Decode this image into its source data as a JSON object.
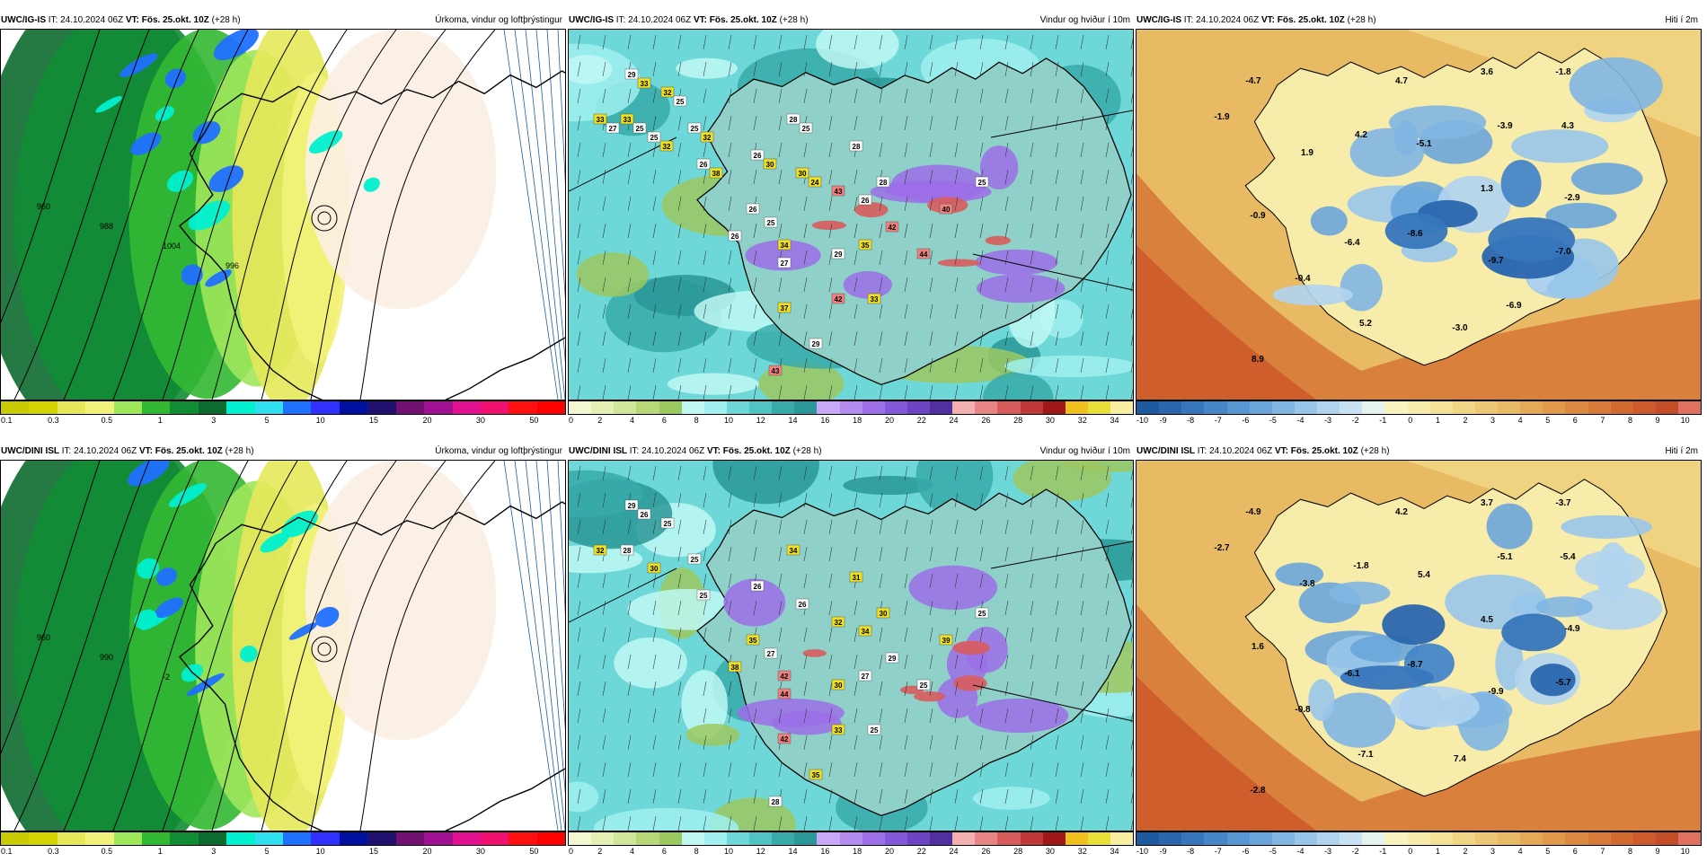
{
  "rows": [
    {
      "model": "UWC/IG-IS",
      "it_label": "IT:",
      "it_value": "24.10.2024 06Z",
      "vt_label": "VT:",
      "vt_value": "Fös. 25.okt. 10Z",
      "lead": "(+28 h)"
    },
    {
      "model": "UWC/DINI ISL",
      "it_label": "IT:",
      "it_value": "24.10.2024 06Z",
      "vt_label": "VT:",
      "vt_value": "Fös. 25.okt. 10Z",
      "lead": "(+28 h)"
    }
  ],
  "products": {
    "precip": {
      "title": "Úrkoma, vindur og loftþrýstingur",
      "colors": [
        "#c8cc00",
        "#d4d400",
        "#e6e85a",
        "#f2f27a",
        "#9ee65a",
        "#33b833",
        "#128c34",
        "#0c6b2e",
        "#00f0d0",
        "#30e0f0",
        "#2070ff",
        "#3030ff",
        "#0010a0",
        "#201070",
        "#701070",
        "#a01090",
        "#e01090",
        "#f01070",
        "#ff1010",
        "#ff0000"
      ],
      "ticks": [
        "0.1",
        "0.3",
        "0.5",
        "1",
        "3",
        "5",
        "10",
        "15",
        "20",
        "30",
        "50"
      ]
    },
    "wind": {
      "title": "Vindur og hviður í 10m",
      "colors": [
        "#f4f8d0",
        "#e4f0b4",
        "#d0e69a",
        "#b8d878",
        "#9cc860",
        "#c0f8f4",
        "#a0f0f0",
        "#6ed8d8",
        "#50c4c4",
        "#38aaaa",
        "#2a9898",
        "#c8a8f8",
        "#b48cf0",
        "#9c6ee8",
        "#8458d8",
        "#6c44c4",
        "#5030a0",
        "#f4b0b0",
        "#e88484",
        "#d85c5c",
        "#c03838",
        "#a01818",
        "#f0c020",
        "#e8e038",
        "#f8f0a0"
      ],
      "ticks": [
        "0",
        "2",
        "4",
        "6",
        "8",
        "10",
        "12",
        "14",
        "16",
        "18",
        "20",
        "22",
        "24",
        "26",
        "28",
        "30",
        "32",
        "34"
      ]
    },
    "temp": {
      "title": "Hiti í 2m",
      "colors": [
        "#1e5aa0",
        "#2a66ae",
        "#3676bc",
        "#4486c8",
        "#5696d2",
        "#6aa6da",
        "#80b6e2",
        "#98c6ea",
        "#b0d4f0",
        "#c8e2f4",
        "#e4f2f0",
        "#f8f4c0",
        "#f8ecaa",
        "#f4e296",
        "#f0d684",
        "#ecc874",
        "#e8ba64",
        "#e4aa56",
        "#e09a4a",
        "#dc8a40",
        "#d87a38",
        "#d26a30",
        "#cc5a2a",
        "#c44c26",
        "#e07060"
      ],
      "ticks": [
        "-10",
        "-9",
        "-8",
        "-7",
        "-6",
        "-5",
        "-4",
        "-3",
        "-2",
        "-1",
        "0",
        "1",
        "2",
        "3",
        "4",
        "5",
        "6",
        "7",
        "8",
        "9",
        "10"
      ]
    }
  },
  "wind_labels": {
    "top": [
      "29",
      "33",
      "33",
      "32",
      "25",
      "25",
      "26",
      "26",
      "28",
      "30",
      "26",
      "25",
      "34",
      "26",
      "29",
      "27",
      "42",
      "37",
      "29",
      "43",
      "26",
      "43",
      "42",
      "35",
      "44",
      "33",
      "28",
      "28",
      "40",
      "25",
      "33",
      "27",
      "25",
      "25",
      "32",
      "32",
      "38",
      "30",
      "25",
      "24"
    ],
    "bottom": [
      "29",
      "32",
      "28",
      "25",
      "25",
      "30",
      "25",
      "26",
      "34",
      "26",
      "35",
      "27",
      "42",
      "38",
      "30",
      "44",
      "33",
      "42",
      "35",
      "28",
      "34",
      "32",
      "29",
      "27",
      "25",
      "25",
      "30",
      "31",
      "39",
      "25",
      "26"
    ]
  },
  "temp_labels": {
    "top": [
      "-4.7",
      "-1.9",
      "4.7",
      "3.6",
      "-1.8",
      "1.9",
      "4.2",
      "-5.1",
      "-3.9",
      "4.3",
      "1.3",
      "-2.9",
      "-0.9",
      "-6.4",
      "-8.6",
      "-9.7",
      "-7.0",
      "-0.4",
      "8.9",
      "5.2",
      "-3.0",
      "-6.9"
    ],
    "bottom": [
      "-4.9",
      "-2.7",
      "4.2",
      "3.7",
      "-3.7",
      "-3.8",
      "-1.8",
      "5.4",
      "-5.1",
      "-5.4",
      "4.5",
      "-4.9",
      "1.6",
      "-6.1",
      "-8.7",
      "-9.9",
      "-5.7",
      "-0.8",
      "-2.8",
      "-7.1",
      "7.4"
    ]
  },
  "precip_labels": {
    "top": [
      "960",
      "988",
      "1004",
      "996"
    ],
    "bottom": [
      "960",
      "990",
      "-2"
    ]
  }
}
